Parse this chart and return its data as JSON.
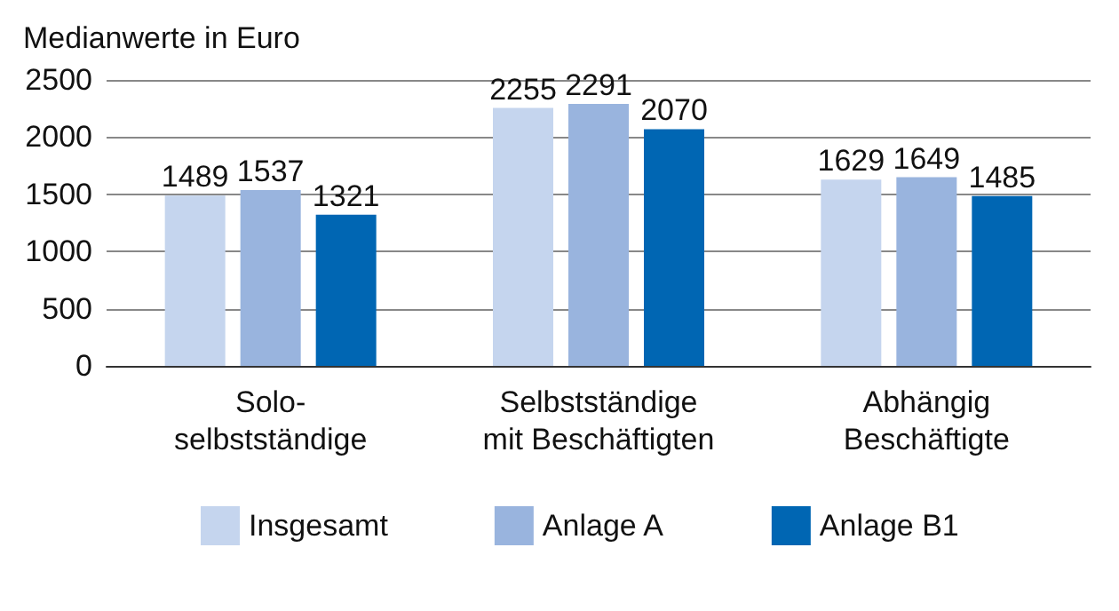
{
  "chart_data": {
    "type": "bar",
    "title": "Medianwerte in Euro",
    "categories": [
      "Solo-\nselbstständige",
      "Selbstständige\nmit Beschäftigten",
      "Abhängig\nBeschäftigte"
    ],
    "series": [
      {
        "name": "Insgesamt",
        "color": "#c5d5ee",
        "values": [
          1489,
          2255,
          1629
        ]
      },
      {
        "name": "Anlage A",
        "color": "#99b4de",
        "values": [
          1537,
          2291,
          1649
        ]
      },
      {
        "name": "Anlage B1",
        "color": "#0066b3",
        "values": [
          1321,
          2070,
          1485
        ]
      }
    ],
    "ylim": [
      0,
      2500
    ],
    "yticks": [
      0,
      500,
      1000,
      1500,
      2000,
      2500
    ],
    "grid": "y",
    "legend": "bottom",
    "data_labels": true
  }
}
